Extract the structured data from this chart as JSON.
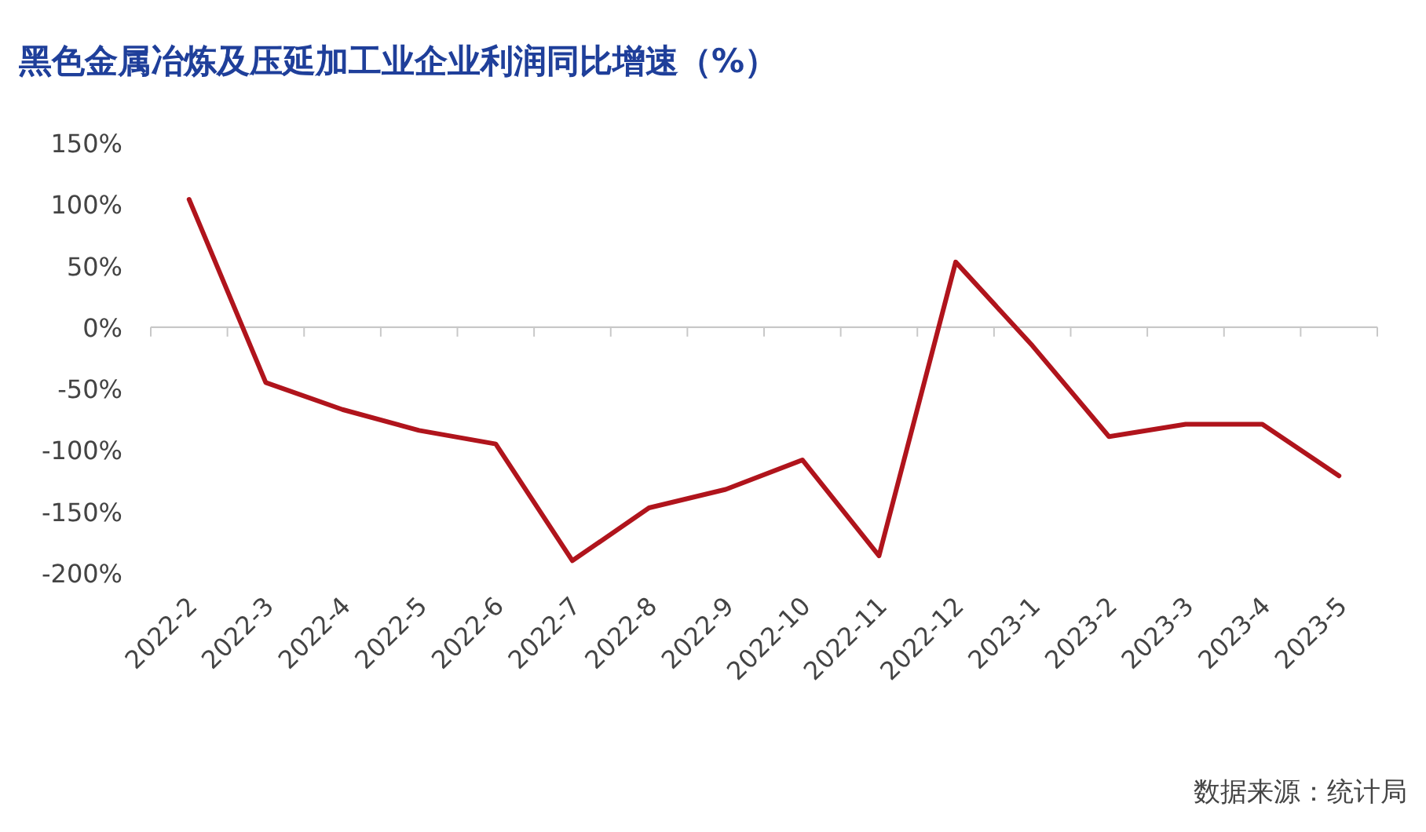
{
  "chart_data": {
    "type": "line",
    "title": "黑色金属冶炼及压延加工业企业利润同比增速（%）",
    "categories": [
      "2022-2",
      "2022-3",
      "2022-4",
      "2022-5",
      "2022-6",
      "2022-7",
      "2022-8",
      "2022-9",
      "2022-10",
      "2022-11",
      "2022-12",
      "2023-1",
      "2023-2",
      "2023-3",
      "2023-4",
      "2023-5"
    ],
    "series": [
      {
        "color": "#b0141c",
        "values": [
          104,
          -45,
          -67,
          -84,
          -95,
          -190,
          -147,
          -132,
          -108,
          -186,
          53,
          -15,
          -89,
          -79,
          -79,
          -121
        ]
      }
    ],
    "ylim": [
      -200,
      150
    ],
    "yticks": [
      {
        "value": -200,
        "label": "-200%"
      },
      {
        "value": -150,
        "label": "-150%"
      },
      {
        "value": -100,
        "label": "-100%"
      },
      {
        "value": -50,
        "label": "-50%"
      },
      {
        "value": 0,
        "label": "0%"
      },
      {
        "value": 50,
        "label": "50%"
      },
      {
        "value": 100,
        "label": "100%"
      },
      {
        "value": 150,
        "label": "150%"
      }
    ],
    "marker": "none",
    "line_style": "solid",
    "annotations": [
      "数据来源：统计局"
    ]
  }
}
